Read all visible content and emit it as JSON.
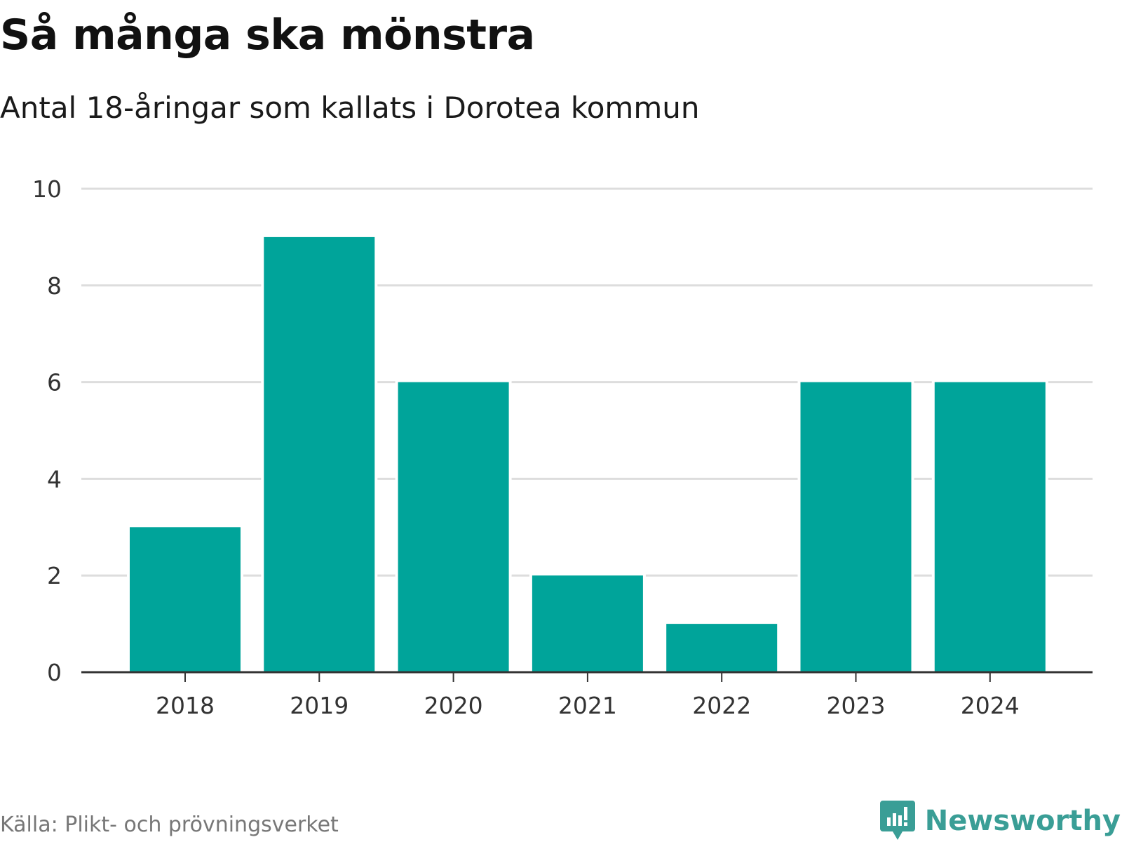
{
  "chart_data": {
    "type": "bar",
    "title": "Så många ska mönstra",
    "subtitle": "Antal 18-åringar som kallats i Dorotea kommun",
    "categories": [
      "2018",
      "2019",
      "2020",
      "2021",
      "2022",
      "2023",
      "2024"
    ],
    "values": [
      3,
      9,
      6,
      2,
      1,
      6,
      6
    ],
    "xlabel": "",
    "ylabel": "",
    "ylim": [
      0,
      10
    ],
    "yticks": [
      "0",
      "2",
      "4",
      "6",
      "8",
      "10"
    ],
    "grid": true,
    "bar_color": "#00a49a",
    "gridline_color": "#dddddd",
    "axis_color": "#333333"
  },
  "source": "Källa: Plikt- och prövningsverket",
  "brand": {
    "name": "Newsworthy",
    "icon": "newsworthy-logo-icon",
    "color": "#3a9e96"
  }
}
